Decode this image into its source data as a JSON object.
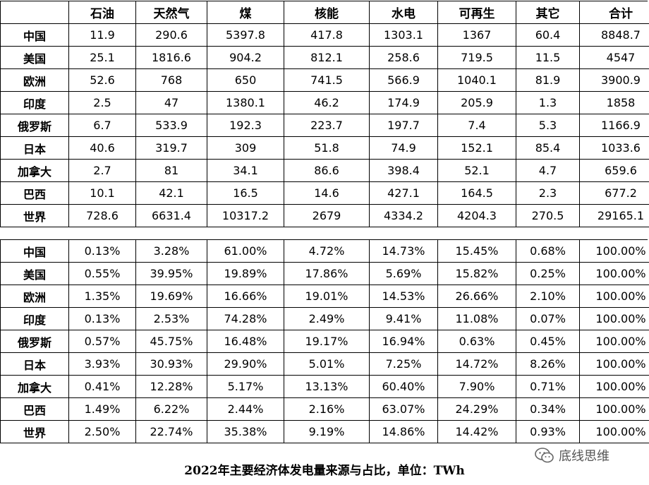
{
  "headers": [
    "",
    "石油",
    "天然气",
    "煤",
    "核能",
    "水电",
    "可再生",
    "其它",
    "合计"
  ],
  "abs_rows": [
    [
      "中国",
      "11.9",
      "290.6",
      "5397.8",
      "417.8",
      "1303.1",
      "1367",
      "60.4",
      "8848.7"
    ],
    [
      "美国",
      "25.1",
      "1816.6",
      "904.2",
      "812.1",
      "258.6",
      "719.5",
      "11.5",
      "4547"
    ],
    [
      "欧洲",
      "52.6",
      "768",
      "650",
      "741.5",
      "566.9",
      "1040.1",
      "81.9",
      "3900.9"
    ],
    [
      "印度",
      "2.5",
      "47",
      "1380.1",
      "46.2",
      "174.9",
      "205.9",
      "1.3",
      "1858"
    ],
    [
      "俄罗斯",
      "6.7",
      "533.9",
      "192.3",
      "223.7",
      "197.7",
      "7.4",
      "5.3",
      "1166.9"
    ],
    [
      "日本",
      "40.6",
      "319.7",
      "309",
      "51.8",
      "74.9",
      "152.1",
      "85.4",
      "1033.6"
    ],
    [
      "加拿大",
      "2.7",
      "81",
      "34.1",
      "86.6",
      "398.4",
      "52.1",
      "4.7",
      "659.6"
    ],
    [
      "巴西",
      "10.1",
      "42.1",
      "16.5",
      "14.6",
      "427.1",
      "164.5",
      "2.3",
      "677.2"
    ],
    [
      "世界",
      "728.6",
      "6631.4",
      "10317.2",
      "2679",
      "4334.2",
      "4204.3",
      "270.5",
      "29165.1"
    ]
  ],
  "pct_rows": [
    [
      "中国",
      "0.13%",
      "3.28%",
      "61.00%",
      "4.72%",
      "14.73%",
      "15.45%",
      "0.68%",
      "100.00%"
    ],
    [
      "美国",
      "0.55%",
      "39.95%",
      "19.89%",
      "17.86%",
      "5.69%",
      "15.82%",
      "0.25%",
      "100.00%"
    ],
    [
      "欧洲",
      "1.35%",
      "19.69%",
      "16.66%",
      "19.01%",
      "14.53%",
      "26.66%",
      "2.10%",
      "100.00%"
    ],
    [
      "印度",
      "0.13%",
      "2.53%",
      "74.28%",
      "2.49%",
      "9.41%",
      "11.08%",
      "0.07%",
      "100.00%"
    ],
    [
      "俄罗斯",
      "0.57%",
      "45.75%",
      "16.48%",
      "19.17%",
      "16.94%",
      "0.63%",
      "0.45%",
      "100.00%"
    ],
    [
      "日本",
      "3.93%",
      "30.93%",
      "29.90%",
      "5.01%",
      "7.25%",
      "14.72%",
      "8.26%",
      "100.00%"
    ],
    [
      "加拿大",
      "0.41%",
      "12.28%",
      "5.17%",
      "13.13%",
      "60.40%",
      "7.90%",
      "0.71%",
      "100.00%"
    ],
    [
      "巴西",
      "1.49%",
      "6.22%",
      "2.44%",
      "2.16%",
      "63.07%",
      "24.29%",
      "0.34%",
      "100.00%"
    ],
    [
      "世界",
      "2.50%",
      "22.74%",
      "35.38%",
      "9.19%",
      "14.86%",
      "14.42%",
      "0.93%",
      "100.00%"
    ]
  ],
  "caption": "2022年主要经济体发电量来源与占比，单位：TWh",
  "watermark": {
    "icon": "wechat-icon",
    "text": "底线思维"
  }
}
